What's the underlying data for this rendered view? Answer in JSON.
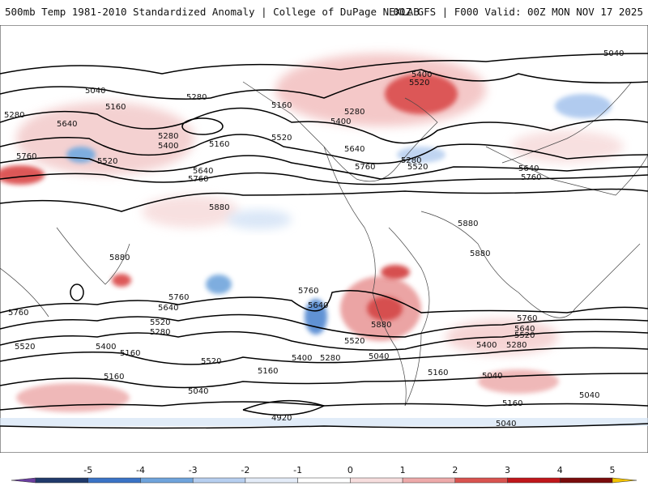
{
  "header": {
    "title": "500mb Temp 1981-2010 Standardized Anomaly | College of DuPage NEXLAB",
    "run_info": "00Z GFS | F000 Valid: 00Z MON NOV 17 2025"
  },
  "contour_labels": [
    "5040",
    "5160",
    "5280",
    "5400",
    "5520",
    "5640",
    "5760",
    "5880",
    "4920"
  ],
  "colorbar": {
    "ticks": [
      "-5",
      "-4",
      "-3",
      "-2",
      "-1",
      "0",
      "1",
      "2",
      "3",
      "4",
      "5"
    ],
    "colors": [
      "#6b3fa0",
      "#203a6b",
      "#3a73c6",
      "#6fa4dc",
      "#b7cff0",
      "#e4ecf8",
      "#ffffff",
      "#f7dede",
      "#eeaaaa",
      "#d9534f",
      "#c0161a",
      "#7a0b0b",
      "#f2c200"
    ]
  }
}
